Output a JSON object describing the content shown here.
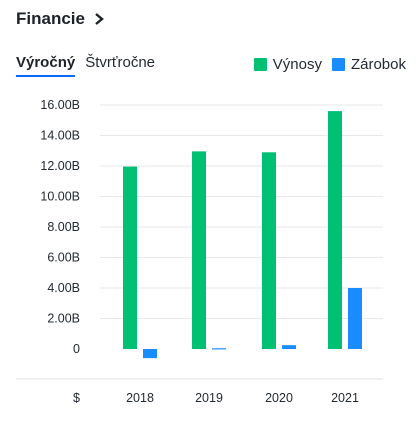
{
  "header": {
    "title": "Financie",
    "chevron_icon": "chevron-right-icon"
  },
  "tabs": [
    {
      "label": "Výročný",
      "active": true
    },
    {
      "label": "Štvrťročne",
      "active": false
    }
  ],
  "legend": [
    {
      "label": "Výnosy",
      "color": "#00c073"
    },
    {
      "label": "Zárobok",
      "color": "#1a8cff"
    }
  ],
  "chart_data": {
    "type": "bar",
    "categories": [
      "2018",
      "2019",
      "2020",
      "2021"
    ],
    "series": [
      {
        "name": "Výnosy",
        "color": "#00c073",
        "values": [
          11.96,
          12.96,
          12.9,
          15.6
        ]
      },
      {
        "name": "Zárobok",
        "color": "#1a8cff",
        "values": [
          -0.6,
          0.05,
          0.25,
          4.0
        ]
      }
    ],
    "y_ticks": [
      "16.00B",
      "14.00B",
      "12.00B",
      "10.00B",
      "8.00B",
      "6.00B",
      "4.00B",
      "2.00B",
      "0"
    ],
    "y_tick_values": [
      16,
      14,
      12,
      10,
      8,
      6,
      4,
      2,
      0
    ],
    "ylim": [
      -2,
      16
    ],
    "currency_label": "$",
    "grid": true,
    "legend_position": "top-right"
  }
}
